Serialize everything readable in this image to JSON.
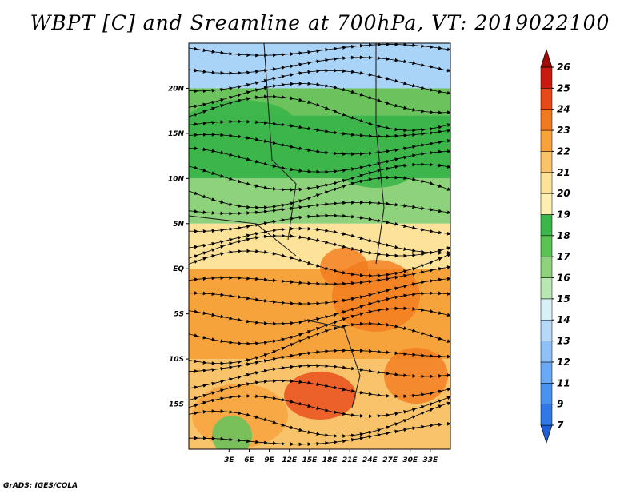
{
  "title": "WBPT [C] and Sreamline at 700hPa, VT: 2019022100",
  "credit": "GrADS: IGES/COLA",
  "map": {
    "lon_range": [
      -3,
      36
    ],
    "lat_range": [
      -20,
      25
    ],
    "lat_ticks": [
      {
        "value": 20,
        "label": "20N"
      },
      {
        "value": 15,
        "label": "15N"
      },
      {
        "value": 10,
        "label": "10N"
      },
      {
        "value": 5,
        "label": "5N"
      },
      {
        "value": 0,
        "label": "EQ"
      },
      {
        "value": -5,
        "label": "5S"
      },
      {
        "value": -10,
        "label": "10S"
      },
      {
        "value": -15,
        "label": "15S"
      }
    ],
    "lon_ticks": [
      {
        "value": 3,
        "label": "3E"
      },
      {
        "value": 6,
        "label": "6E"
      },
      {
        "value": 9,
        "label": "9E"
      },
      {
        "value": 12,
        "label": "12E"
      },
      {
        "value": 15,
        "label": "15E"
      },
      {
        "value": 18,
        "label": "18E"
      },
      {
        "value": 21,
        "label": "21E"
      },
      {
        "value": 24,
        "label": "24E"
      },
      {
        "value": 27,
        "label": "27E"
      },
      {
        "value": 30,
        "label": "30E"
      },
      {
        "value": 33,
        "label": "33E"
      }
    ],
    "bands": [
      {
        "lat_from": 25,
        "lat_to": 20,
        "color": "#a9d3f7"
      },
      {
        "lat_from": 20,
        "lat_to": 17,
        "color": "#6cc25c"
      },
      {
        "lat_from": 17,
        "lat_to": 10,
        "color": "#3cb64a"
      },
      {
        "lat_from": 10,
        "lat_to": 5,
        "color": "#8fd27c"
      },
      {
        "lat_from": 5,
        "lat_to": 0,
        "color": "#fde39a"
      },
      {
        "lat_from": 0,
        "lat_to": -10,
        "color": "#f7a33c"
      },
      {
        "lat_from": -10,
        "lat_to": -20,
        "color": "#f8c36a"
      }
    ],
    "streamline_count": 26
  },
  "colorbar": {
    "labels": [
      "7",
      "9",
      "11",
      "12",
      "13",
      "14",
      "15",
      "16",
      "17",
      "18",
      "19",
      "20",
      "21",
      "22",
      "23",
      "24",
      "25",
      "26"
    ],
    "colors": [
      "#1f5fd6",
      "#2f78e6",
      "#4a92ef",
      "#6aa9f3",
      "#8fc1f7",
      "#b6d9fa",
      "#daf0f8",
      "#b9e7b1",
      "#8fd27c",
      "#5bc254",
      "#3cb64a",
      "#fdf0b0",
      "#fde39a",
      "#f8c36a",
      "#f7a33c",
      "#f27a1e",
      "#e8491a",
      "#c81a10",
      "#a00a08"
    ]
  }
}
